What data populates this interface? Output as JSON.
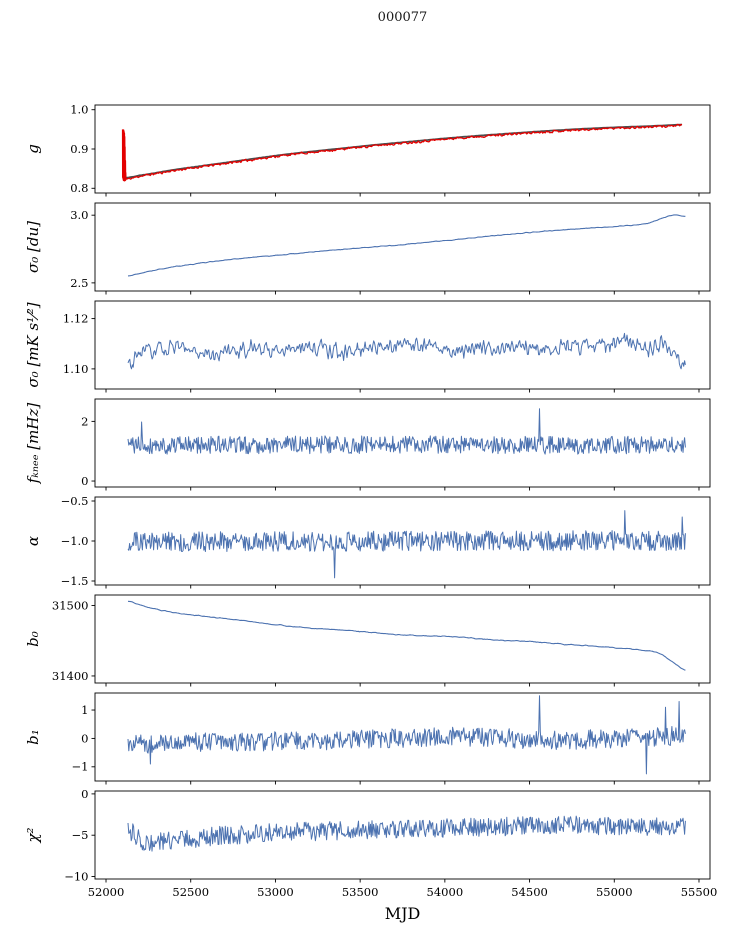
{
  "figure": {
    "title": "000077",
    "xlabel": "MJD"
  },
  "axes": {
    "xlim": [
      51935,
      55565
    ],
    "xticks": [
      52000,
      52500,
      53000,
      53500,
      54000,
      54500,
      55000,
      55500
    ],
    "xtick_labels": [
      "52000",
      "52500",
      "53000",
      "53500",
      "54000",
      "54500",
      "55000",
      "55500"
    ]
  },
  "colors": {
    "line_blue": "#4c72b0",
    "line_red": "#e30000",
    "line_dark": "#4d4d4d",
    "axis": "#000000",
    "bg": "#ffffff"
  },
  "chart_data": [
    {
      "name": "g",
      "type": "line",
      "ylabel": "g",
      "ylim": [
        0.788,
        1.012
      ],
      "yticks": [
        0.8,
        0.9,
        1.0
      ],
      "ytick_labels": [
        "0.8",
        "0.9",
        "1.0"
      ],
      "series": [
        {
          "name": "gain-model",
          "color": "line_dark",
          "width": 1.8,
          "mode": "trend",
          "samples": 300,
          "anchors": [
            [
              52100,
              0.826
            ],
            [
              52200,
              0.833
            ],
            [
              52400,
              0.847
            ],
            [
              52600,
              0.859
            ],
            [
              52800,
              0.871
            ],
            [
              53000,
              0.883
            ],
            [
              53200,
              0.893
            ],
            [
              53400,
              0.902
            ],
            [
              53600,
              0.911
            ],
            [
              53800,
              0.919
            ],
            [
              54000,
              0.927
            ],
            [
              54200,
              0.934
            ],
            [
              54400,
              0.94
            ],
            [
              54600,
              0.946
            ],
            [
              54800,
              0.951
            ],
            [
              55000,
              0.955
            ],
            [
              55200,
              0.958
            ],
            [
              55300,
              0.96
            ],
            [
              55400,
              0.962
            ]
          ]
        },
        {
          "name": "gain-start-spike",
          "color": "line_red",
          "width": 2.2,
          "mode": "points",
          "points": [
            [
              52100,
              0.95
            ],
            [
              52101,
              0.828
            ],
            [
              52102,
              0.947
            ],
            [
              52103,
              0.824
            ],
            [
              52104,
              0.944
            ],
            [
              52105,
              0.821
            ],
            [
              52106,
              0.94
            ],
            [
              52107,
              0.822
            ],
            [
              52108,
              0.931
            ],
            [
              52109,
              0.82
            ],
            [
              52110,
              0.905
            ],
            [
              52111,
              0.822
            ],
            [
              52112,
              0.87
            ],
            [
              52113,
              0.821
            ],
            [
              52114,
              0.84
            ],
            [
              52115,
              0.823
            ]
          ]
        },
        {
          "name": "gain-fit",
          "color": "line_red",
          "width": 1.3,
          "mode": "noisy",
          "noise": 0.0035,
          "smooth": 2,
          "seed": 11,
          "samples": 700,
          "anchors": [
            [
              52115,
              0.823
            ],
            [
              52200,
              0.831
            ],
            [
              52400,
              0.845
            ],
            [
              52600,
              0.857
            ],
            [
              52800,
              0.869
            ],
            [
              53000,
              0.881
            ],
            [
              53200,
              0.891
            ],
            [
              53400,
              0.9
            ],
            [
              53600,
              0.909
            ],
            [
              53800,
              0.917
            ],
            [
              54000,
              0.925
            ],
            [
              54200,
              0.932
            ],
            [
              54400,
              0.938
            ],
            [
              54600,
              0.944
            ],
            [
              54800,
              0.949
            ],
            [
              55000,
              0.953
            ],
            [
              55200,
              0.956
            ],
            [
              55300,
              0.958
            ],
            [
              55400,
              0.96
            ]
          ]
        }
      ]
    },
    {
      "name": "sigma0-du",
      "type": "line",
      "ylabel": "σ₀ [du]",
      "ylim": [
        2.44,
        3.09
      ],
      "yticks": [
        2.5,
        3.0
      ],
      "ytick_labels": [
        "2.5",
        "3.0"
      ],
      "series": [
        {
          "name": "sigma0-du",
          "color": "line_blue",
          "width": 1.1,
          "mode": "noisy",
          "noise": 0.004,
          "smooth": 3,
          "seed": 21,
          "samples": 500,
          "anchors": [
            [
              52130,
              2.552
            ],
            [
              52250,
              2.585
            ],
            [
              52400,
              2.618
            ],
            [
              52550,
              2.645
            ],
            [
              52700,
              2.668
            ],
            [
              52850,
              2.687
            ],
            [
              53000,
              2.703
            ],
            [
              53150,
              2.72
            ],
            [
              53300,
              2.737
            ],
            [
              53450,
              2.752
            ],
            [
              53600,
              2.768
            ],
            [
              53750,
              2.783
            ],
            [
              53900,
              2.8
            ],
            [
              54050,
              2.818
            ],
            [
              54200,
              2.838
            ],
            [
              54350,
              2.856
            ],
            [
              54500,
              2.872
            ],
            [
              54650,
              2.887
            ],
            [
              54800,
              2.9
            ],
            [
              54950,
              2.912
            ],
            [
              55100,
              2.925
            ],
            [
              55200,
              2.94
            ],
            [
              55300,
              2.985
            ],
            [
              55350,
              3.0
            ],
            [
              55420,
              2.993
            ]
          ]
        }
      ]
    },
    {
      "name": "sigma0-mK",
      "type": "line",
      "ylabel": "σ₀ [mK s¹⁄²]",
      "ylim": [
        1.092,
        1.127
      ],
      "yticks": [
        1.1,
        1.12
      ],
      "ytick_labels": [
        "1.10",
        "1.12"
      ],
      "series": [
        {
          "name": "sigma0-mK",
          "color": "line_blue",
          "width": 1.0,
          "mode": "noisy",
          "noise": 0.004,
          "smooth": 2,
          "seed": 31,
          "samples": 650,
          "anchors": [
            [
              52130,
              1.101
            ],
            [
              52200,
              1.106
            ],
            [
              52400,
              1.108
            ],
            [
              52600,
              1.106
            ],
            [
              52800,
              1.108
            ],
            [
              53000,
              1.108
            ],
            [
              53200,
              1.109
            ],
            [
              53400,
              1.107
            ],
            [
              53600,
              1.109
            ],
            [
              53800,
              1.11
            ],
            [
              54000,
              1.108
            ],
            [
              54200,
              1.108
            ],
            [
              54400,
              1.109
            ],
            [
              54600,
              1.108
            ],
            [
              54800,
              1.109
            ],
            [
              55000,
              1.11
            ],
            [
              55100,
              1.111
            ],
            [
              55200,
              1.108
            ],
            [
              55300,
              1.109
            ],
            [
              55420,
              1.101
            ]
          ]
        }
      ]
    },
    {
      "name": "fknee",
      "type": "line",
      "ylabel": "fₖₙₑₑ [mHz]",
      "ylim": [
        -0.2,
        2.75
      ],
      "yticks": [
        0,
        2
      ],
      "ytick_labels": [
        "0",
        "2"
      ],
      "series": [
        {
          "name": "fknee",
          "color": "line_blue",
          "width": 1.0,
          "mode": "noisy",
          "noise": 0.3,
          "smooth": 1,
          "seed": 41,
          "samples": 700,
          "spikes": [
            [
              52210,
              1.98
            ],
            [
              54560,
              2.42
            ]
          ],
          "anchors": [
            [
              52130,
              1.2
            ],
            [
              53500,
              1.22
            ],
            [
              54500,
              1.2
            ],
            [
              55420,
              1.2
            ]
          ]
        }
      ]
    },
    {
      "name": "alpha",
      "type": "line",
      "ylabel": "α",
      "ylim": [
        -1.55,
        -0.45
      ],
      "yticks": [
        -1.5,
        -1.0,
        -0.5
      ],
      "ytick_labels": [
        "−1.5",
        "−1.0",
        "−0.5"
      ],
      "series": [
        {
          "name": "alpha",
          "color": "line_blue",
          "width": 1.0,
          "mode": "noisy",
          "noise": 0.125,
          "smooth": 1,
          "seed": 51,
          "samples": 700,
          "spikes": [
            [
              53350,
              -1.46
            ],
            [
              55060,
              -0.62
            ],
            [
              55400,
              -0.7
            ]
          ],
          "anchors": [
            [
              52130,
              -1.01
            ],
            [
              53000,
              -1.005
            ],
            [
              54000,
              -1.0
            ],
            [
              55000,
              -0.995
            ],
            [
              55420,
              -1.0
            ]
          ]
        }
      ]
    },
    {
      "name": "b0",
      "type": "line",
      "ylabel": "b₀",
      "ylim": [
        31390,
        31515
      ],
      "yticks": [
        31400,
        31500
      ],
      "ytick_labels": [
        "31400",
        "31500"
      ],
      "series": [
        {
          "name": "b0",
          "color": "line_blue",
          "width": 1.1,
          "mode": "noisy",
          "noise": 1.0,
          "smooth": 3,
          "seed": 61,
          "samples": 420,
          "anchors": [
            [
              52130,
              31506
            ],
            [
              52250,
              31497
            ],
            [
              52400,
              31490
            ],
            [
              52600,
              31484
            ],
            [
              52800,
              31479
            ],
            [
              53000,
              31473
            ],
            [
              53200,
              31468
            ],
            [
              53400,
              31465
            ],
            [
              53500,
              31463
            ],
            [
              53700,
              31459
            ],
            [
              53900,
              31457
            ],
            [
              54100,
              31455
            ],
            [
              54300,
              31451
            ],
            [
              54500,
              31449
            ],
            [
              54700,
              31445
            ],
            [
              54900,
              31442
            ],
            [
              55100,
              31438
            ],
            [
              55250,
              31434
            ],
            [
              55320,
              31424
            ],
            [
              55420,
              31408
            ]
          ]
        }
      ]
    },
    {
      "name": "b1",
      "type": "line",
      "ylabel": "b₁",
      "ylim": [
        -1.5,
        1.6
      ],
      "yticks": [
        -1,
        0,
        1
      ],
      "ytick_labels": [
        "−1",
        "0",
        "1"
      ],
      "series": [
        {
          "name": "b1",
          "color": "line_blue",
          "width": 1.0,
          "mode": "noisy",
          "noise": 0.34,
          "smooth": 1,
          "seed": 71,
          "samples": 700,
          "spikes": [
            [
              52260,
              -0.9
            ],
            [
              54560,
              1.5
            ],
            [
              55190,
              -1.25
            ],
            [
              55300,
              1.1
            ],
            [
              55380,
              1.3
            ]
          ],
          "anchors": [
            [
              52130,
              -0.2
            ],
            [
              52500,
              -0.13
            ],
            [
              53000,
              -0.1
            ],
            [
              53500,
              -0.05
            ],
            [
              53900,
              0.05
            ],
            [
              54200,
              0.05
            ],
            [
              54600,
              -0.05
            ],
            [
              55000,
              0.0
            ],
            [
              55420,
              0.1
            ]
          ]
        }
      ]
    },
    {
      "name": "chi2",
      "type": "line",
      "ylabel": "χ²",
      "ylim": [
        -10.3,
        0.35
      ],
      "yticks": [
        -10,
        -5,
        0
      ],
      "ytick_labels": [
        "−10",
        "−5",
        "0"
      ],
      "series": [
        {
          "name": "chi2",
          "color": "line_blue",
          "width": 1.0,
          "mode": "noisy",
          "noise": 1.15,
          "smooth": 1,
          "seed": 81,
          "samples": 700,
          "anchors": [
            [
              52130,
              -4.3
            ],
            [
              52230,
              -5.9
            ],
            [
              52400,
              -5.6
            ],
            [
              52600,
              -5.2
            ],
            [
              52800,
              -4.9
            ],
            [
              53000,
              -4.7
            ],
            [
              53300,
              -4.5
            ],
            [
              53600,
              -4.3
            ],
            [
              53900,
              -4.2
            ],
            [
              54200,
              -4.0
            ],
            [
              54500,
              -3.9
            ],
            [
              54800,
              -3.8
            ],
            [
              55100,
              -4.0
            ],
            [
              55420,
              -4.0
            ]
          ]
        }
      ]
    }
  ]
}
